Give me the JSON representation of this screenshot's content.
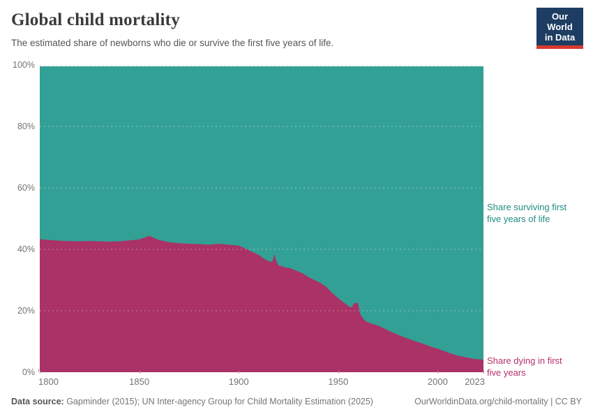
{
  "header": {
    "title": "Global child mortality",
    "subtitle": "The estimated share of newborns who die or survive the first five years of life.",
    "logo": {
      "line1": "Our World",
      "line2": "in Data",
      "bg_color": "#1d3d63",
      "accent_color": "#d93a2d"
    }
  },
  "chart_data": {
    "type": "area",
    "stacked": true,
    "title": "Global child mortality",
    "xlabel": "",
    "ylabel": "",
    "xlim": [
      1800,
      2023
    ],
    "ylim": [
      0,
      100
    ],
    "grid": "dashed horizontal",
    "legend_position": "right-annotations",
    "x_ticks": [
      1800,
      1850,
      1900,
      1950,
      2000,
      2023
    ],
    "y_ticks": [
      "0%",
      "20%",
      "40%",
      "60%",
      "80%",
      "100%"
    ],
    "x": [
      1800,
      1805,
      1810,
      1815,
      1820,
      1825,
      1830,
      1835,
      1840,
      1845,
      1850,
      1853,
      1855,
      1857,
      1860,
      1865,
      1870,
      1875,
      1880,
      1885,
      1890,
      1895,
      1900,
      1903,
      1906,
      1910,
      1913,
      1916,
      1917,
      1918,
      1919,
      1920,
      1923,
      1926,
      1929,
      1932,
      1935,
      1938,
      1941,
      1944,
      1947,
      1950,
      1953,
      1956,
      1957,
      1958,
      1959,
      1960,
      1961,
      1963,
      1965,
      1968,
      1971,
      1974,
      1977,
      1980,
      1983,
      1986,
      1989,
      1992,
      1995,
      1998,
      2001,
      2004,
      2007,
      2010,
      2013,
      2016,
      2019,
      2023
    ],
    "series": [
      {
        "name": "Share dying in first five years",
        "color": "#aa3266",
        "values": [
          43.3,
          43.0,
          42.8,
          42.7,
          42.6,
          42.7,
          42.6,
          42.5,
          42.6,
          42.9,
          43.2,
          43.9,
          44.4,
          43.8,
          43.0,
          42.3,
          42.0,
          41.8,
          41.7,
          41.5,
          41.8,
          41.5,
          41.2,
          40.4,
          39.4,
          38.2,
          36.8,
          35.9,
          36.2,
          38.4,
          35.9,
          34.8,
          34.2,
          33.8,
          33.0,
          32.2,
          31.0,
          30.0,
          29.1,
          27.8,
          25.8,
          24.1,
          22.6,
          21.2,
          21.3,
          22.5,
          22.6,
          22.3,
          19.0,
          17.0,
          16.2,
          15.6,
          14.9,
          13.9,
          13.0,
          12.2,
          11.4,
          10.7,
          10.0,
          9.4,
          8.7,
          8.0,
          7.4,
          6.7,
          6.0,
          5.4,
          5.0,
          4.6,
          4.3,
          4.1
        ]
      },
      {
        "name": "Share surviving first five years of life",
        "color": "#33a095",
        "values": [
          56.7,
          57.0,
          57.2,
          57.3,
          57.4,
          57.3,
          57.4,
          57.5,
          57.4,
          57.1,
          56.8,
          56.1,
          55.6,
          56.2,
          57.0,
          57.7,
          58.0,
          58.2,
          58.3,
          58.5,
          58.2,
          58.5,
          58.8,
          59.6,
          60.6,
          61.8,
          63.2,
          64.1,
          63.8,
          61.6,
          64.1,
          65.2,
          65.8,
          66.2,
          67.0,
          67.8,
          69.0,
          70.0,
          70.9,
          72.2,
          74.2,
          75.9,
          77.4,
          78.8,
          78.7,
          77.5,
          77.4,
          77.7,
          81.0,
          83.0,
          83.8,
          84.4,
          85.1,
          86.1,
          87.0,
          87.8,
          88.6,
          89.3,
          90.0,
          90.6,
          91.3,
          92.0,
          92.6,
          93.3,
          94.0,
          94.6,
          95.0,
          95.4,
          95.7,
          95.9
        ]
      }
    ]
  },
  "annotations": {
    "surviving": {
      "line1": "Share surviving first",
      "line2": "five years of life",
      "color": "#1d8c82"
    },
    "dying": {
      "line1": "Share dying in first",
      "line2": "five years",
      "color": "#b52f6d"
    }
  },
  "footer": {
    "source_label": "Data source:",
    "source_text": " Gapminder (2015); UN Inter-agency Group for Child Mortality Estimation (2025)",
    "link_text": "OurWorldinData.org/child-mortality | CC BY"
  },
  "style_colors": {
    "gridline_over_fill": "rgba(255,255,255,0.4)",
    "gridline_top": "#d9d9d9",
    "axis_text": "#737373"
  }
}
